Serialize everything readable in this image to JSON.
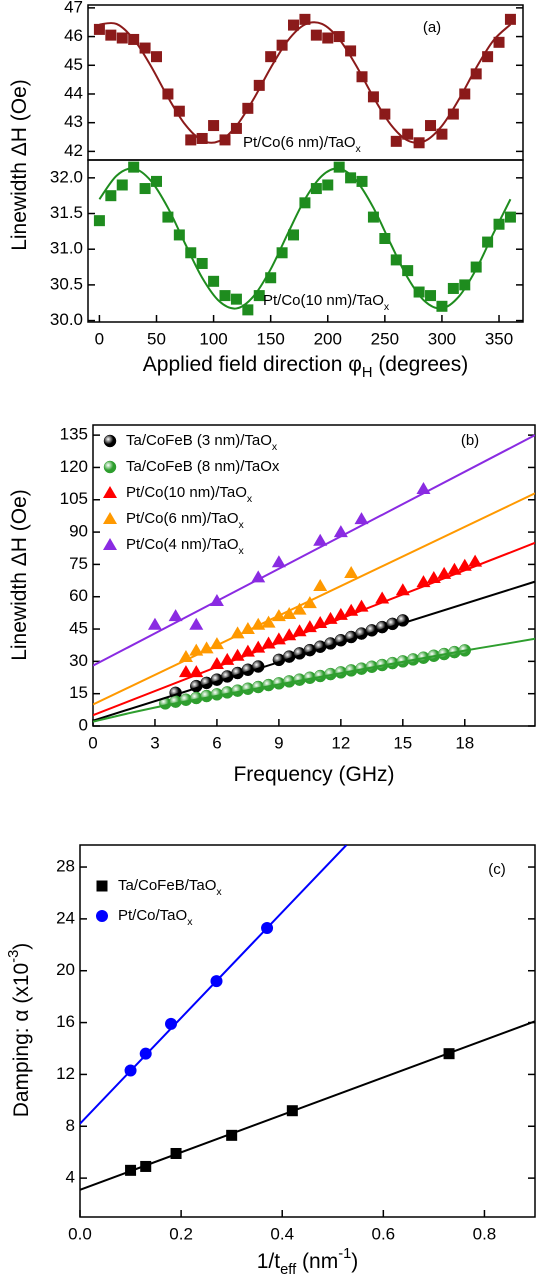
{
  "chart_data": [
    {
      "type": "scatter",
      "panel_label": "(a)",
      "y_label": [
        "Linewidth ΔH (Oe)"
      ],
      "xlim": [
        -10,
        371
      ],
      "ylim": [
        41.7,
        47.1
      ],
      "yticks": [
        42,
        43,
        44,
        45,
        46,
        47
      ],
      "annotations": [
        {
          "text": [
            "Pt/Co(6 nm)/TaO",
            "x"
          ],
          "color": "#8b1a1a"
        }
      ],
      "series": [
        {
          "color": "#8b1a1a",
          "marker": "square",
          "x": [
            0,
            10,
            20,
            30,
            40,
            50,
            60,
            70,
            80,
            90,
            100,
            110,
            120,
            130,
            140,
            150,
            160,
            170,
            180,
            190,
            200,
            210,
            220,
            230,
            240,
            250,
            260,
            270,
            280,
            290,
            300,
            310,
            320,
            330,
            340,
            350,
            360
          ],
          "values": [
            46.25,
            46.05,
            45.95,
            45.9,
            45.6,
            45.3,
            44.0,
            43.4,
            42.4,
            42.45,
            42.9,
            42.4,
            42.8,
            43.5,
            44.3,
            45.3,
            45.7,
            46.4,
            46.6,
            46.05,
            45.95,
            46.0,
            45.5,
            44.6,
            43.9,
            43.3,
            42.35,
            42.6,
            42.3,
            42.9,
            42.6,
            43.3,
            44.0,
            44.7,
            45.3,
            45.8,
            46.6
          ]
        },
        {
          "color": "#8b1a1a",
          "marker": "none",
          "x": [
            0,
            15,
            30,
            45,
            60,
            75,
            90,
            105,
            120,
            135,
            150,
            165,
            180,
            195,
            210,
            225,
            240,
            255,
            270,
            285,
            300,
            315,
            330,
            345,
            360
          ],
          "values": [
            46.42,
            46.44,
            45.91,
            44.98,
            43.89,
            42.94,
            42.38,
            42.36,
            42.89,
            43.82,
            44.91,
            45.86,
            46.42,
            46.44,
            45.91,
            44.98,
            43.89,
            42.94,
            42.38,
            42.36,
            42.89,
            43.82,
            44.91,
            45.86,
            46.42
          ]
        }
      ]
    },
    {
      "type": "scatter",
      "x_label": [
        "Applied field direction φ",
        "H",
        " (degrees)"
      ],
      "xlim": [
        -10,
        371
      ],
      "ylim": [
        29.98,
        32.25
      ],
      "xticks": [
        0,
        50,
        100,
        150,
        200,
        250,
        300,
        350
      ],
      "yticks": [
        {
          "value": 30,
          "label": "30.0"
        },
        30.5,
        {
          "value": 31,
          "label": "31.0"
        },
        31.5,
        {
          "value": 32,
          "label": "32.0"
        }
      ],
      "annotations": [
        {
          "text": [
            "Pt/Co(10 nm)/TaO",
            "x"
          ],
          "color": "#1e8c1e"
        }
      ],
      "series": [
        {
          "color": "#1e8c1e",
          "marker": "square",
          "x": [
            0,
            10,
            20,
            30,
            40,
            50,
            60,
            70,
            80,
            90,
            100,
            110,
            120,
            130,
            140,
            150,
            160,
            170,
            180,
            190,
            200,
            210,
            220,
            230,
            240,
            250,
            260,
            270,
            280,
            290,
            300,
            310,
            320,
            330,
            340,
            350,
            360
          ],
          "values": [
            31.4,
            31.75,
            31.9,
            32.15,
            31.85,
            31.95,
            31.45,
            31.2,
            30.95,
            30.8,
            30.55,
            30.35,
            30.3,
            30.15,
            30.35,
            30.6,
            30.95,
            31.2,
            31.65,
            31.85,
            31.9,
            32.15,
            32.0,
            31.95,
            31.45,
            31.15,
            30.85,
            30.7,
            30.4,
            30.35,
            30.2,
            30.45,
            30.5,
            30.75,
            31.1,
            31.35,
            31.45
          ]
        },
        {
          "color": "#1e8c1e",
          "marker": "none",
          "x": [
            0,
            15,
            30,
            45,
            60,
            75,
            90,
            105,
            120,
            135,
            150,
            165,
            180,
            195,
            210,
            225,
            240,
            255,
            270,
            285,
            300,
            315,
            330,
            345,
            360
          ],
          "values": [
            31.7,
            32.03,
            32.13,
            31.96,
            31.58,
            31.08,
            30.6,
            30.27,
            30.17,
            30.34,
            30.72,
            31.22,
            31.7,
            32.03,
            32.13,
            31.96,
            31.58,
            31.08,
            30.6,
            30.27,
            30.17,
            30.34,
            30.72,
            31.22,
            31.7
          ]
        }
      ]
    },
    {
      "type": "scatter",
      "panel_label": "(b)",
      "x_label": [
        "Frequency (GHz)"
      ],
      "y_label": [
        "Linewidth ΔH (Oe)"
      ],
      "legend": "upper left",
      "xlim": [
        0,
        21.4
      ],
      "ylim": [
        0,
        139.7
      ],
      "xticks": [
        0,
        3,
        6,
        9,
        12,
        15,
        18
      ],
      "yticks": [
        0,
        15,
        30,
        45,
        60,
        75,
        90,
        105,
        120,
        135
      ],
      "series": [
        {
          "name": [
            "Ta/CoFeB (3 nm)/TaO",
            "x"
          ],
          "color": "#000000",
          "marker": "sphere",
          "x": [
            4,
            5,
            5.5,
            6,
            6.5,
            7,
            7.5,
            8,
            9,
            9.5,
            10,
            10.5,
            11,
            11.5,
            12,
            12.5,
            13,
            13.5,
            14,
            14.5,
            15
          ],
          "values": [
            15.4,
            18.5,
            20,
            21.5,
            23,
            24.6,
            26.1,
            27.6,
            30.7,
            32.2,
            33.7,
            35.2,
            36.8,
            38.3,
            39.8,
            41.3,
            42.9,
            44.4,
            45.9,
            47.4,
            49
          ]
        },
        {
          "name": [
            "Ta/CoFeB (8 nm)/TaOx"
          ],
          "color": "#2e9e2e",
          "marker": "sphere",
          "x": [
            3.5,
            4,
            4.5,
            5,
            5.5,
            6,
            6.5,
            7,
            7.5,
            8,
            8.5,
            9,
            9.5,
            10,
            10.5,
            11,
            11.5,
            12,
            12.5,
            13,
            13.5,
            14,
            14.5,
            15,
            15.5,
            16,
            16.5,
            17,
            17.5,
            18
          ],
          "values": [
            10.5,
            11.3,
            12.2,
            13,
            13.9,
            14.7,
            15.6,
            16.4,
            17.3,
            18.1,
            19,
            19.8,
            20.7,
            21.5,
            22.4,
            23.2,
            24.1,
            24.9,
            25.8,
            26.6,
            27.5,
            28.3,
            29.2,
            30,
            30.9,
            31.7,
            32.6,
            33.4,
            34.3,
            35.1
          ]
        },
        {
          "name": [
            "Pt/Co(10 nm)/TaO",
            "x"
          ],
          "color": "#ff0000",
          "marker": "triangle",
          "x": [
            4.5,
            5,
            6,
            6.5,
            7,
            7.5,
            8,
            8.5,
            9,
            9.5,
            10,
            10.5,
            11,
            11.5,
            12,
            12.5,
            13,
            14,
            15,
            16,
            16.5,
            17,
            17.5,
            18,
            18.5
          ],
          "values": [
            25,
            25,
            28.8,
            30.7,
            32.6,
            34.5,
            36.4,
            38.3,
            40.2,
            42.1,
            44,
            45.9,
            47.8,
            49.7,
            51.6,
            53.5,
            55.4,
            59.2,
            63,
            66.8,
            68.7,
            70.6,
            72.5,
            74.4,
            76.3
          ]
        },
        {
          "name": [
            "Pt/Co(6 nm)/TaO",
            "x"
          ],
          "color": "#ff9900",
          "marker": "triangle",
          "x": [
            4.5,
            5,
            5.5,
            6,
            7,
            7.5,
            8,
            8.5,
            9,
            9.5,
            10,
            10.5,
            11,
            12.5
          ],
          "values": [
            32,
            35,
            36,
            38,
            43,
            45,
            47,
            48,
            51,
            52,
            54,
            57,
            65,
            71
          ]
        },
        {
          "name": [
            "Pt/Co(4 nm)/TaO",
            "x"
          ],
          "color": "#8a2be2",
          "marker": "triangle",
          "x": [
            3,
            4,
            5,
            6,
            8,
            9,
            11,
            12,
            13,
            16
          ],
          "values": [
            47,
            51,
            47,
            58,
            69,
            76,
            86,
            90,
            96,
            110
          ]
        },
        {
          "color": "#000000",
          "marker": "none",
          "x": [
            0,
            21.4
          ],
          "values": [
            2.5,
            67
          ]
        },
        {
          "color": "#2e9e2e",
          "marker": "none",
          "x": [
            0,
            2,
            4,
            6,
            8,
            10,
            12,
            14,
            16,
            18,
            20,
            21.4
          ],
          "values": [
            2,
            6.5,
            10.5,
            14,
            17.5,
            21,
            24.5,
            28,
            31.5,
            35,
            38.2,
            40.5
          ]
        },
        {
          "color": "#ff0000",
          "marker": "none",
          "x": [
            0,
            21.4
          ],
          "values": [
            5,
            85
          ]
        },
        {
          "color": "#ff9900",
          "marker": "none",
          "x": [
            0,
            21.4
          ],
          "values": [
            10,
            108
          ]
        },
        {
          "color": "#8a2be2",
          "marker": "none",
          "x": [
            0,
            21.4
          ],
          "values": [
            28,
            135
          ]
        }
      ]
    },
    {
      "type": "scatter",
      "panel_label": "(c)",
      "x_label": [
        "1/t",
        "eff",
        " (nm",
        "-1",
        ")"
      ],
      "y_label": [
        "Damping: α (x10",
        "-3",
        ")"
      ],
      "legend": "upper left",
      "xlim": [
        0,
        0.9
      ],
      "ylim": [
        1,
        29.7
      ],
      "xticks": [
        {
          "value": 0,
          "label": "0.0"
        },
        0.2,
        0.4,
        0.6,
        0.8
      ],
      "yticks": [
        4,
        8,
        12,
        16,
        20,
        24,
        28
      ],
      "series": [
        {
          "name": [
            "Ta/CoFeB/TaO",
            "x"
          ],
          "color": "#000000",
          "marker": "square",
          "x": [
            0.1,
            0.13,
            0.19,
            0.3,
            0.42,
            0.73
          ],
          "values": [
            4.6,
            4.9,
            5.9,
            7.3,
            9.2,
            13.6
          ]
        },
        {
          "name": [
            "Pt/Co/TaO",
            "x"
          ],
          "color": "#0000ff",
          "marker": "circle",
          "x": [
            0.1,
            0.13,
            0.18,
            0.27,
            0.37
          ],
          "values": [
            12.3,
            13.6,
            15.9,
            19.2,
            23.3
          ]
        },
        {
          "color": "#000000",
          "marker": "none",
          "x": [
            0,
            0.9
          ],
          "values": [
            3.1,
            16.1
          ]
        },
        {
          "color": "#0000ff",
          "marker": "none",
          "x": [
            0,
            0.527
          ],
          "values": [
            8.2,
            29.7
          ]
        }
      ]
    }
  ]
}
